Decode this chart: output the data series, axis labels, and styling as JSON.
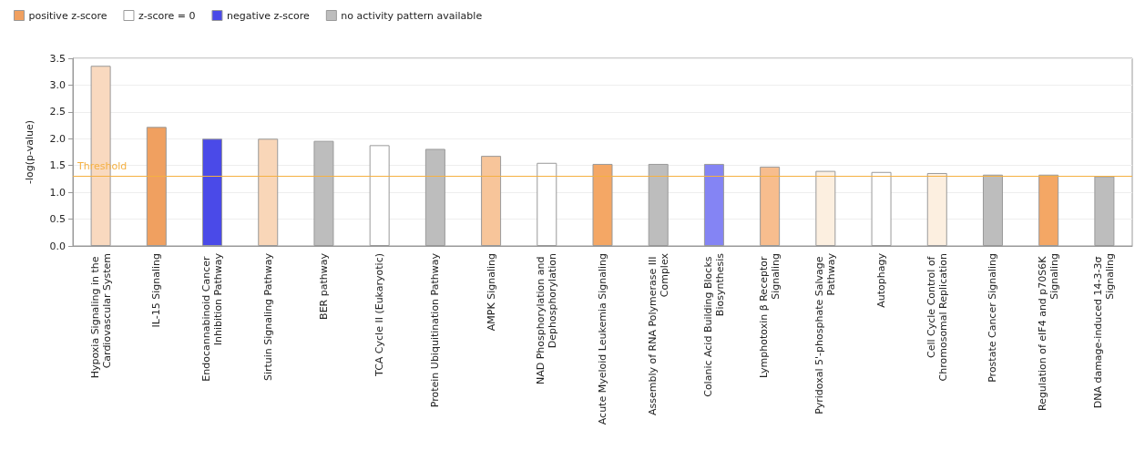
{
  "chart_data": {
    "type": "bar",
    "ylabel": "-log(p-value)",
    "stacked": true,
    "categories": [
      "Hypoxia Signaling in the Cardiovascular System",
      "IL-15 Signaling",
      "Endocannabinoid Cancer Inhibition Pathway",
      "Sirtuin Signaling Pathway",
      "BER pathway",
      "TCA Cycle II (Eukaryotic)",
      "Protein Ubiquitination Pathway",
      "AMPK Signaling",
      "NAD Phosphorylation and Dephosphorylation",
      "Acute Myeloid Leukemia Signaling",
      "Assembly of RNA Polymerase III Complex",
      "Colanic Acid Building Blocks Biosynthesis",
      "Lymphotoxin β Receptor Signaling",
      "Pyridoxal 5'-phosphate Salvage Pathway",
      "Autophagy",
      "Cell Cycle Control of Chromosomal Replication",
      "Prostate Cancer Signaling",
      "Regulation of eIF4 and p70S6K Signaling",
      "DNA damage-induced 14-3-3σ Signaling"
    ],
    "series": [
      {
        "name": "positive z-score",
        "color": "#f0a060",
        "values": [
          3.36,
          2.22,
          null,
          2.0,
          null,
          null,
          null,
          1.68,
          null,
          1.53,
          null,
          null,
          1.48,
          1.4,
          null,
          1.36,
          null,
          1.33,
          null
        ],
        "colors": [
          "#f9d9bf",
          "#f0a060",
          null,
          "#f9d6b8",
          null,
          null,
          null,
          "#f7c59a",
          null,
          "#f4a765",
          null,
          null,
          "#f7bd8e",
          "#fcefe0",
          null,
          "#fcefe0",
          null,
          "#f4a765",
          null
        ]
      },
      {
        "name": "z-score = 0",
        "color": "#ffffff",
        "values": [
          null,
          null,
          null,
          null,
          null,
          1.88,
          null,
          null,
          1.55,
          null,
          null,
          null,
          null,
          null,
          1.38,
          null,
          null,
          null,
          null
        ],
        "colors": [
          null,
          null,
          null,
          null,
          null,
          "#ffffff",
          null,
          null,
          "#ffffff",
          null,
          null,
          null,
          null,
          null,
          "#ffffff",
          null,
          null,
          null,
          null
        ]
      },
      {
        "name": "negative z-score",
        "color": "#4a4ae8",
        "values": [
          null,
          null,
          2.0,
          null,
          null,
          null,
          null,
          null,
          null,
          null,
          null,
          1.53,
          null,
          null,
          null,
          null,
          null,
          null,
          null
        ],
        "colors": [
          null,
          null,
          "#4a4ae8",
          null,
          null,
          null,
          null,
          null,
          null,
          null,
          null,
          "#8484f4",
          null,
          null,
          null,
          null,
          null,
          null,
          null
        ]
      },
      {
        "name": "no activity pattern available",
        "color": "#bdbdbd",
        "values": [
          null,
          null,
          null,
          null,
          1.96,
          null,
          1.81,
          null,
          null,
          null,
          1.53,
          null,
          null,
          null,
          null,
          null,
          1.33,
          null,
          1.3
        ],
        "colors": [
          null,
          null,
          null,
          null,
          "#bdbdbd",
          null,
          "#bdbdbd",
          null,
          null,
          null,
          "#bdbdbd",
          null,
          null,
          null,
          null,
          null,
          "#bdbdbd",
          null,
          "#bdbdbd"
        ]
      }
    ],
    "ylim": [
      0,
      3.5
    ],
    "yticks": [
      {
        "value": 0,
        "label": "0.0"
      },
      {
        "value": 0.5,
        "label": "0.5"
      },
      {
        "value": 1,
        "label": "1.0"
      },
      {
        "value": 1.5,
        "label": "1.5"
      },
      {
        "value": 2,
        "label": "2.0"
      },
      {
        "value": 2.5,
        "label": "2.5"
      },
      {
        "value": 3,
        "label": "3.0"
      },
      {
        "value": 3.5,
        "label": "3.5"
      }
    ],
    "grid": "y",
    "legend": "top left",
    "ref_lines": [
      {
        "axis": "y",
        "value": 1.3,
        "label": "Threshold",
        "color": "#f5b041"
      }
    ]
  }
}
